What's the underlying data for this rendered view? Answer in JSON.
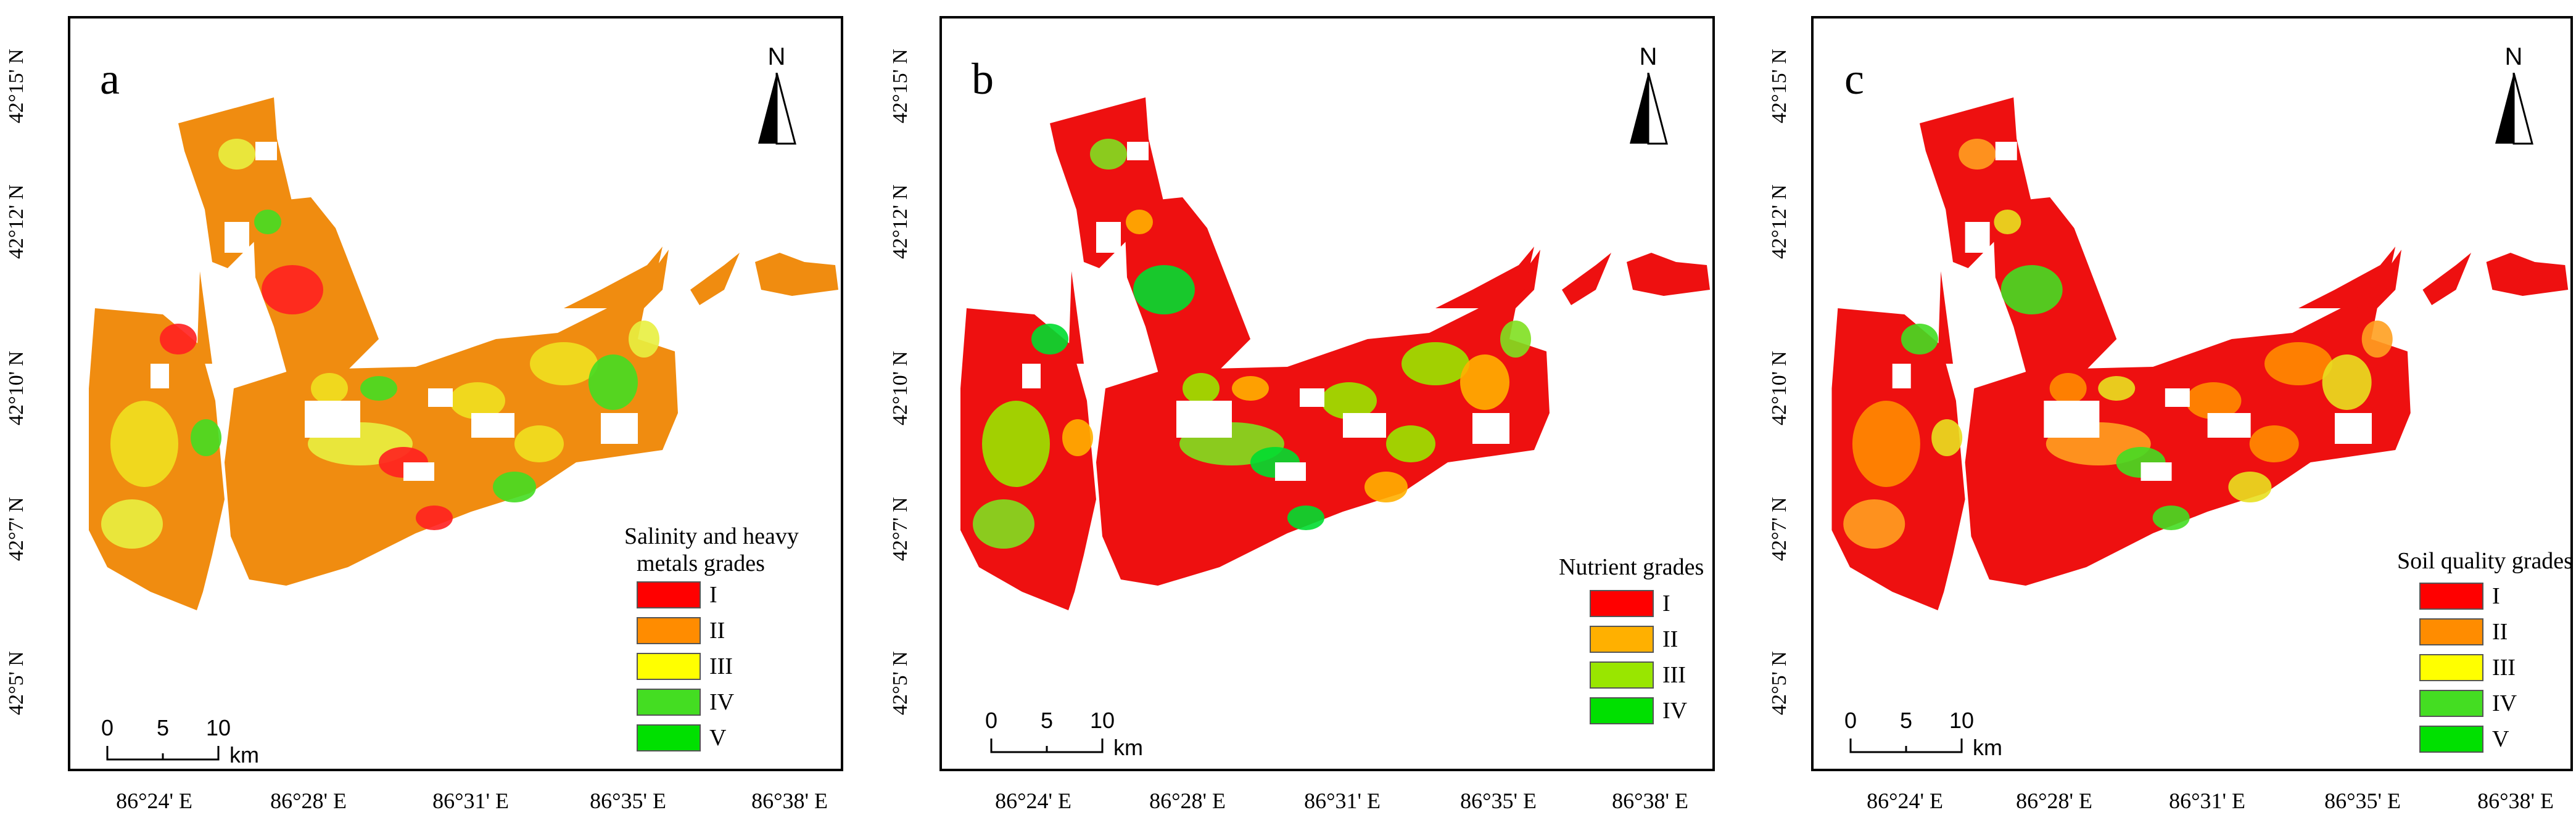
{
  "panels": [
    {
      "letter": "a",
      "legend_title_lines": [
        "Salinity and heavy",
        "metals grades"
      ],
      "legend": [
        {
          "label": "I",
          "color": "#ff0000"
        },
        {
          "label": "II",
          "color": "#ff8c00"
        },
        {
          "label": "III",
          "color": "#ffff00"
        },
        {
          "label": "IV",
          "color": "#44dd22"
        },
        {
          "label": "V",
          "color": "#00e000"
        }
      ],
      "fill_dominant": "#f08c10",
      "spots": [
        "#f0e020",
        "#44dd22",
        "#e8f040",
        "#ff2020"
      ]
    },
    {
      "letter": "b",
      "legend_title_lines": [
        "Nutrient grades"
      ],
      "legend": [
        {
          "label": "I",
          "color": "#ff0000"
        },
        {
          "label": "II",
          "color": "#ffb000"
        },
        {
          "label": "III",
          "color": "#99e600"
        },
        {
          "label": "IV",
          "color": "#00e000"
        }
      ],
      "fill_dominant": "#ee1010",
      "spots": [
        "#99e600",
        "#ffb000",
        "#7fe020",
        "#00dd30"
      ]
    },
    {
      "letter": "c",
      "legend_title_lines": [
        "Soil quality grades"
      ],
      "legend": [
        {
          "label": "I",
          "color": "#ff0000"
        },
        {
          "label": "II",
          "color": "#ff8c00"
        },
        {
          "label": "III",
          "color": "#ffff00"
        },
        {
          "label": "IV",
          "color": "#44dd22"
        },
        {
          "label": "V",
          "color": "#00e000"
        }
      ],
      "fill_dominant": "#ee1010",
      "spots": [
        "#ff8c00",
        "#e8e020",
        "#ffa020",
        "#44dd22"
      ]
    }
  ],
  "lat_labels": [
    "42°15' N",
    "42°12' N",
    "42°10' N",
    "42°7' N",
    "42°5' N"
  ],
  "lon_labels": [
    "86°24' E",
    "86°28' E",
    "86°31' E",
    "86°35' E",
    "86°38' E"
  ],
  "north_label": "N",
  "scale": {
    "ticks": [
      "0",
      "5",
      "10"
    ],
    "unit": "km"
  }
}
